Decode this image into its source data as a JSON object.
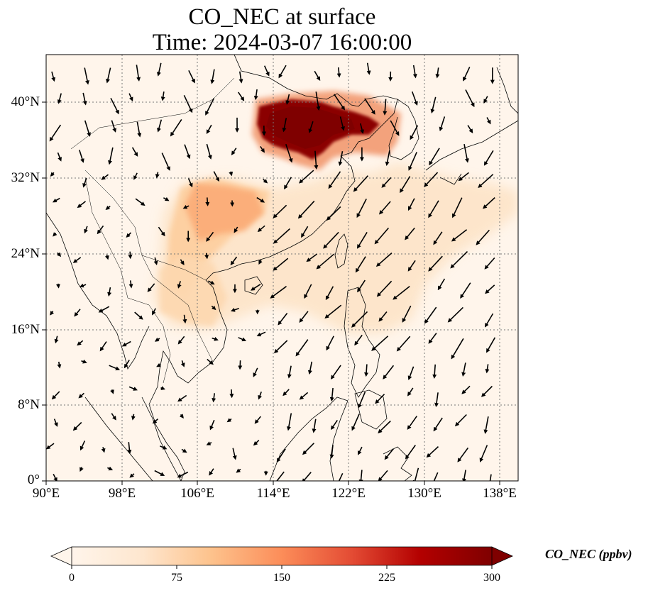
{
  "title_line1": "CO_NEC at surface",
  "title_line2": "Time: 2024-03-07 16:00:00",
  "lon_ticks": [
    "90°E",
    "98°E",
    "106°E",
    "114°E",
    "122°E",
    "130°E",
    "138°E"
  ],
  "lat_ticks": [
    "0°",
    "8°N",
    "16°N",
    "24°N",
    "32°N",
    "40°N"
  ],
  "colorbar": {
    "label": "CO_NEC (ppbv)",
    "ticks": [
      "0",
      "75",
      "150",
      "225",
      "300"
    ],
    "min": 0,
    "max": 300,
    "extend": "both",
    "colormap": [
      "#fff5eb",
      "#fdd49e",
      "#fdbb84",
      "#fc8d59",
      "#e34a33",
      "#b30000",
      "#7f0000"
    ]
  },
  "map": {
    "lon_range": [
      90,
      140
    ],
    "lat_range": [
      0,
      44
    ],
    "gridlines": "dotted",
    "background_color": "#fff5eb",
    "plume_color_high": "#7f0000",
    "wind_vectors": "black arrows"
  }
}
